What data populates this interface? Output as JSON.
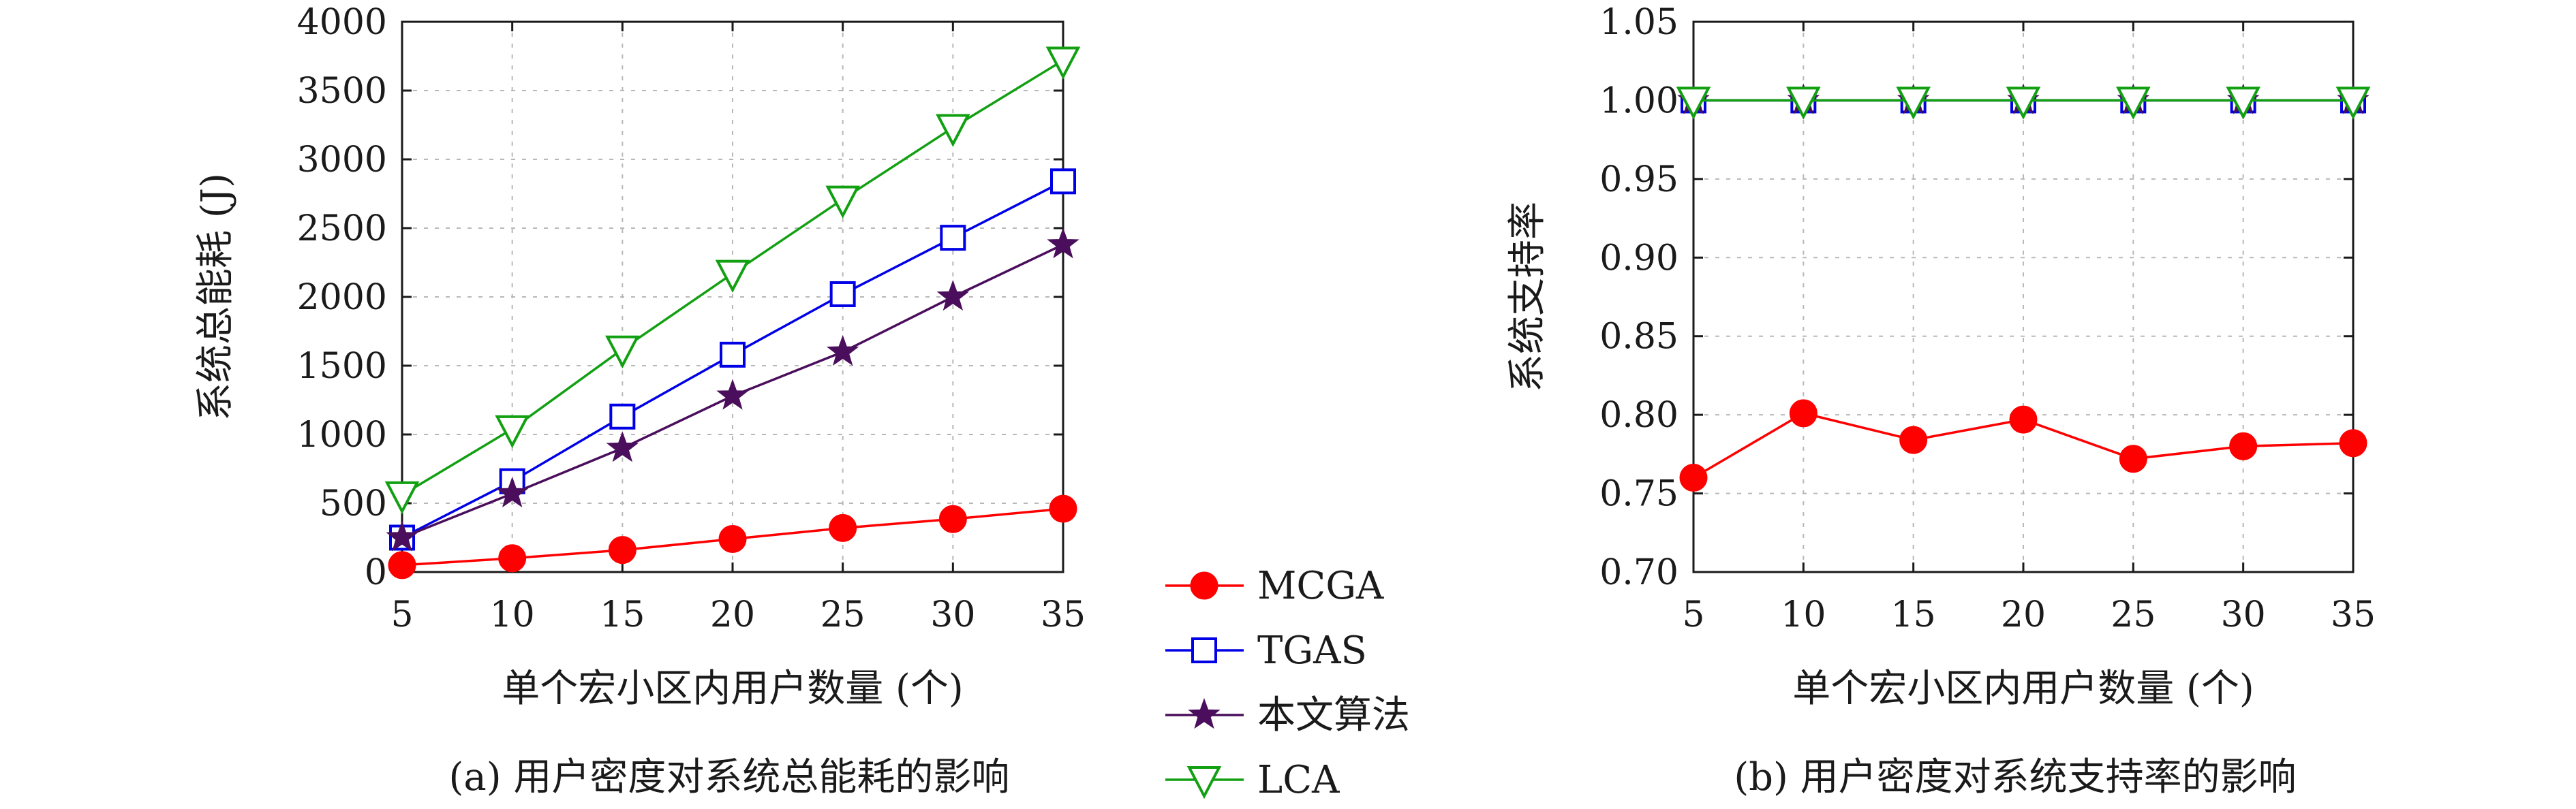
{
  "chart_data": [
    {
      "type": "line",
      "subtitle": "(a) 用户密度对系统总能耗的影响",
      "xlabel": "单个宏小区内用户数量 (个)",
      "ylabel": "系统总能耗 (J)",
      "x": [
        5,
        10,
        15,
        20,
        25,
        30,
        35
      ],
      "xticks": [
        "5",
        "10",
        "15",
        "20",
        "25",
        "30",
        "35"
      ],
      "yticks": [
        "0",
        "500",
        "1000",
        "1500",
        "2000",
        "2500",
        "3000",
        "3500",
        "4000"
      ],
      "xlim": [
        5,
        35
      ],
      "ylim": [
        0,
        4000
      ],
      "grid": true,
      "series": [
        {
          "name": "MCGA",
          "values": [
            50,
            100,
            160,
            240,
            320,
            385,
            460
          ]
        },
        {
          "name": "TGAS",
          "values": [
            250,
            660,
            1130,
            1580,
            2020,
            2430,
            2840
          ]
        },
        {
          "name": "本文算法",
          "values": [
            250,
            570,
            900,
            1280,
            1600,
            2000,
            2380
          ]
        },
        {
          "name": "LCA",
          "values": [
            560,
            1040,
            1620,
            2170,
            2710,
            3230,
            3720
          ]
        }
      ]
    },
    {
      "type": "line",
      "subtitle": "(b) 用户密度对系统支持率的影响",
      "xlabel": "单个宏小区内用户数量 (个)",
      "ylabel": "系统支持率",
      "x": [
        5,
        10,
        15,
        20,
        25,
        30,
        35
      ],
      "xticks": [
        "5",
        "10",
        "15",
        "20",
        "25",
        "30",
        "35"
      ],
      "yticks": [
        "0.70",
        "0.75",
        "0.80",
        "0.85",
        "0.90",
        "0.95",
        "1.00",
        "1.05"
      ],
      "xlim": [
        5,
        35
      ],
      "ylim": [
        0.7,
        1.05
      ],
      "grid": true,
      "series": [
        {
          "name": "MCGA",
          "values": [
            0.76,
            0.801,
            0.784,
            0.797,
            0.772,
            0.78,
            0.782
          ]
        },
        {
          "name": "TGAS",
          "values": [
            1.0,
            1.0,
            1.0,
            1.0,
            1.0,
            1.0,
            1.0
          ]
        },
        {
          "name": "本文算法",
          "values": [
            1.0,
            1.0,
            1.0,
            1.0,
            1.0,
            1.0,
            1.0
          ]
        },
        {
          "name": "LCA",
          "values": [
            1.0,
            1.0,
            1.0,
            1.0,
            1.0,
            1.0,
            1.0
          ]
        }
      ]
    }
  ],
  "legend": {
    "placement": "center-bottom",
    "items": [
      "MCGA",
      "TGAS",
      "本文算法",
      "LCA"
    ]
  },
  "colors": {
    "MCGA": "#ff0000",
    "TGAS": "#0000e6",
    "本文算法": "#4a0e5c",
    "LCA": "#12a012",
    "grid": "#b8b8b8",
    "axis": "#1a1a1a"
  },
  "markers": {
    "MCGA": "filled-circle",
    "TGAS": "open-square",
    "本文算法": "filled-star",
    "LCA": "open-triangle-down"
  }
}
